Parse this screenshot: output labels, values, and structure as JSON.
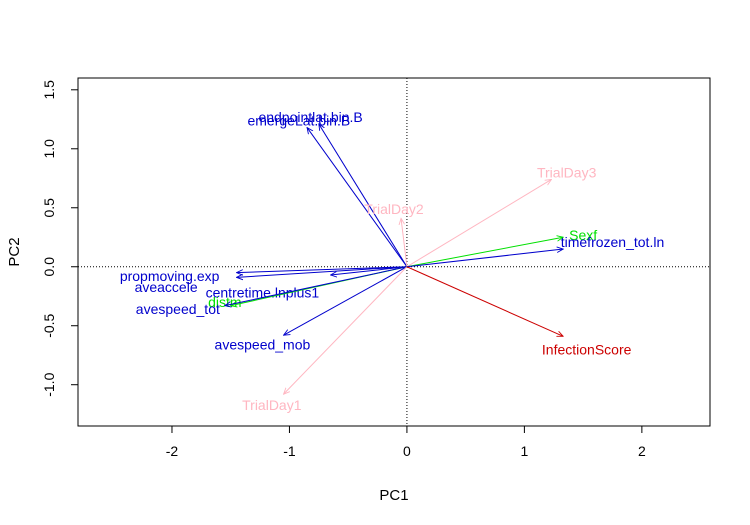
{
  "chart_data": {
    "type": "biplot",
    "xlabel": "PC1",
    "ylabel": "PC2",
    "xlim": [
      -2.8,
      2.58
    ],
    "ylim": [
      -1.35,
      1.6
    ],
    "x_ticks": [
      -2,
      -1,
      0,
      1,
      2
    ],
    "y_ticks": [
      -1.0,
      -0.5,
      0.0,
      0.5,
      1.0,
      1.5
    ],
    "y_tick_labels": [
      "-1.0",
      "-0.5",
      "0.0",
      "0.5",
      "1.0",
      "1.5"
    ],
    "reference_lines": {
      "x": 0,
      "y": 0,
      "style": "dotted"
    },
    "colors": {
      "blue": "#0000cc",
      "green": "#00e000",
      "pink": "#ffb6c1",
      "red": "#cc0000"
    },
    "vectors": [
      {
        "label": "endpointlat.bin.B",
        "x": -0.75,
        "y": 1.21,
        "color": "blue",
        "label_x": -0.82,
        "label_y": 1.27
      },
      {
        "label": "emergeLat.bin.B",
        "x": -0.85,
        "y": 1.18,
        "color": "blue",
        "label_x": -0.92,
        "label_y": 1.24
      },
      {
        "label": "TrialDay3",
        "x": 1.23,
        "y": 0.74,
        "color": "pink",
        "label_x": 1.36,
        "label_y": 0.8
      },
      {
        "label": "TrialDay2",
        "x": -0.05,
        "y": 0.41,
        "color": "pink",
        "label_x": -0.11,
        "label_y": 0.49
      },
      {
        "label": "Sexf",
        "x": 1.33,
        "y": 0.25,
        "color": "green",
        "label_x": 1.5,
        "label_y": 0.27
      },
      {
        "label": "timefrozen_tot.ln",
        "x": 1.33,
        "y": 0.15,
        "color": "blue",
        "label_x": 1.75,
        "label_y": 0.21
      },
      {
        "label": "propmoving.exp",
        "x": -1.45,
        "y": -0.05,
        "color": "blue",
        "label_x": -2.02,
        "label_y": -0.08
      },
      {
        "label": "aveaccele",
        "x": -1.45,
        "y": -0.09,
        "color": "blue",
        "label_x": -2.05,
        "label_y": -0.17
      },
      {
        "label": "centretime.lnplus1",
        "x": -0.65,
        "y": -0.07,
        "color": "blue",
        "label_x": -1.23,
        "label_y": -0.22
      },
      {
        "label": "distm",
        "x": -1.5,
        "y": -0.33,
        "color": "green",
        "label_x": -1.55,
        "label_y": -0.3
      },
      {
        "label": "avespeed_tot",
        "x": -1.55,
        "y": -0.33,
        "color": "blue",
        "label_x": -1.95,
        "label_y": -0.36
      },
      {
        "label": "avespeed_mob",
        "x": -1.05,
        "y": -0.58,
        "color": "blue",
        "label_x": -1.23,
        "label_y": -0.66
      },
      {
        "label": "TrialDay1",
        "x": -1.05,
        "y": -1.08,
        "color": "pink",
        "label_x": -1.15,
        "label_y": -1.17
      },
      {
        "label": "InfectionScore",
        "x": 1.33,
        "y": -0.59,
        "color": "red",
        "label_x": 1.53,
        "label_y": -0.7
      }
    ]
  }
}
